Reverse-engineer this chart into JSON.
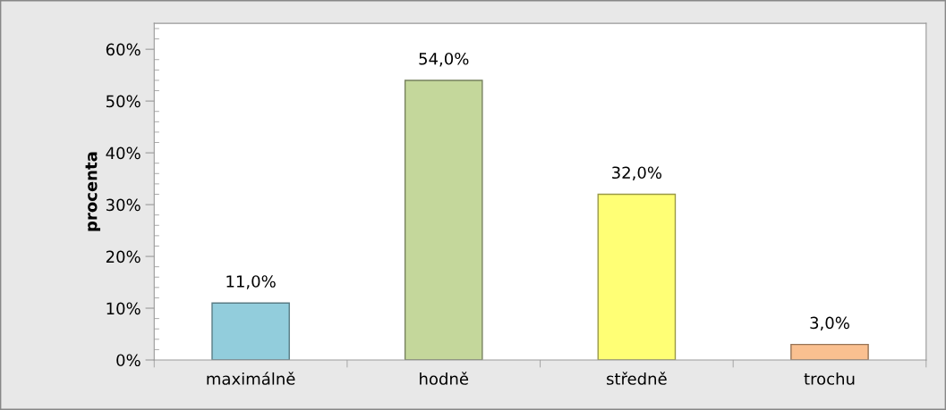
{
  "chart_data": {
    "type": "bar",
    "ylabel": "procenta",
    "categories": [
      "maximálně",
      "hodně",
      "středně",
      "trochu"
    ],
    "values": [
      11,
      54,
      32,
      3
    ],
    "colors": [
      "#92cddc",
      "#c4d79b",
      "#ffff75",
      "#fac090"
    ],
    "value_labels": [
      "11,0%",
      "54,0%",
      "32,0%",
      "3,0%"
    ],
    "ylim": [
      0,
      65
    ],
    "yticks": [
      {
        "value": 0,
        "label": "0%"
      },
      {
        "value": 10,
        "label": "10%"
      },
      {
        "value": 20,
        "label": "20%"
      },
      {
        "value": 30,
        "label": "30%"
      },
      {
        "value": 40,
        "label": "40%"
      },
      {
        "value": 50,
        "label": "50%"
      },
      {
        "value": 60,
        "label": "60%"
      },
      {
        "value": 2,
        "label": null
      },
      {
        "value": 4,
        "label": null
      },
      {
        "value": 6,
        "label": null
      },
      {
        "value": 8,
        "label": null
      },
      {
        "value": 12,
        "label": null
      },
      {
        "value": 14,
        "label": null
      },
      {
        "value": 16,
        "label": null
      },
      {
        "value": 18,
        "label": null
      },
      {
        "value": 22,
        "label": null
      },
      {
        "value": 24,
        "label": null
      },
      {
        "value": 26,
        "label": null
      },
      {
        "value": 28,
        "label": null
      },
      {
        "value": 32,
        "label": null
      },
      {
        "value": 34,
        "label": null
      },
      {
        "value": 36,
        "label": null
      },
      {
        "value": 38,
        "label": null
      },
      {
        "value": 42,
        "label": null
      },
      {
        "value": 44,
        "label": null
      },
      {
        "value": 46,
        "label": null
      },
      {
        "value": 48,
        "label": null
      },
      {
        "value": 52,
        "label": null
      },
      {
        "value": 54,
        "label": null
      },
      {
        "value": 56,
        "label": null
      },
      {
        "value": 58,
        "label": null
      },
      {
        "value": 62,
        "label": null
      },
      {
        "value": 64,
        "label": null
      }
    ],
    "grid": false
  }
}
